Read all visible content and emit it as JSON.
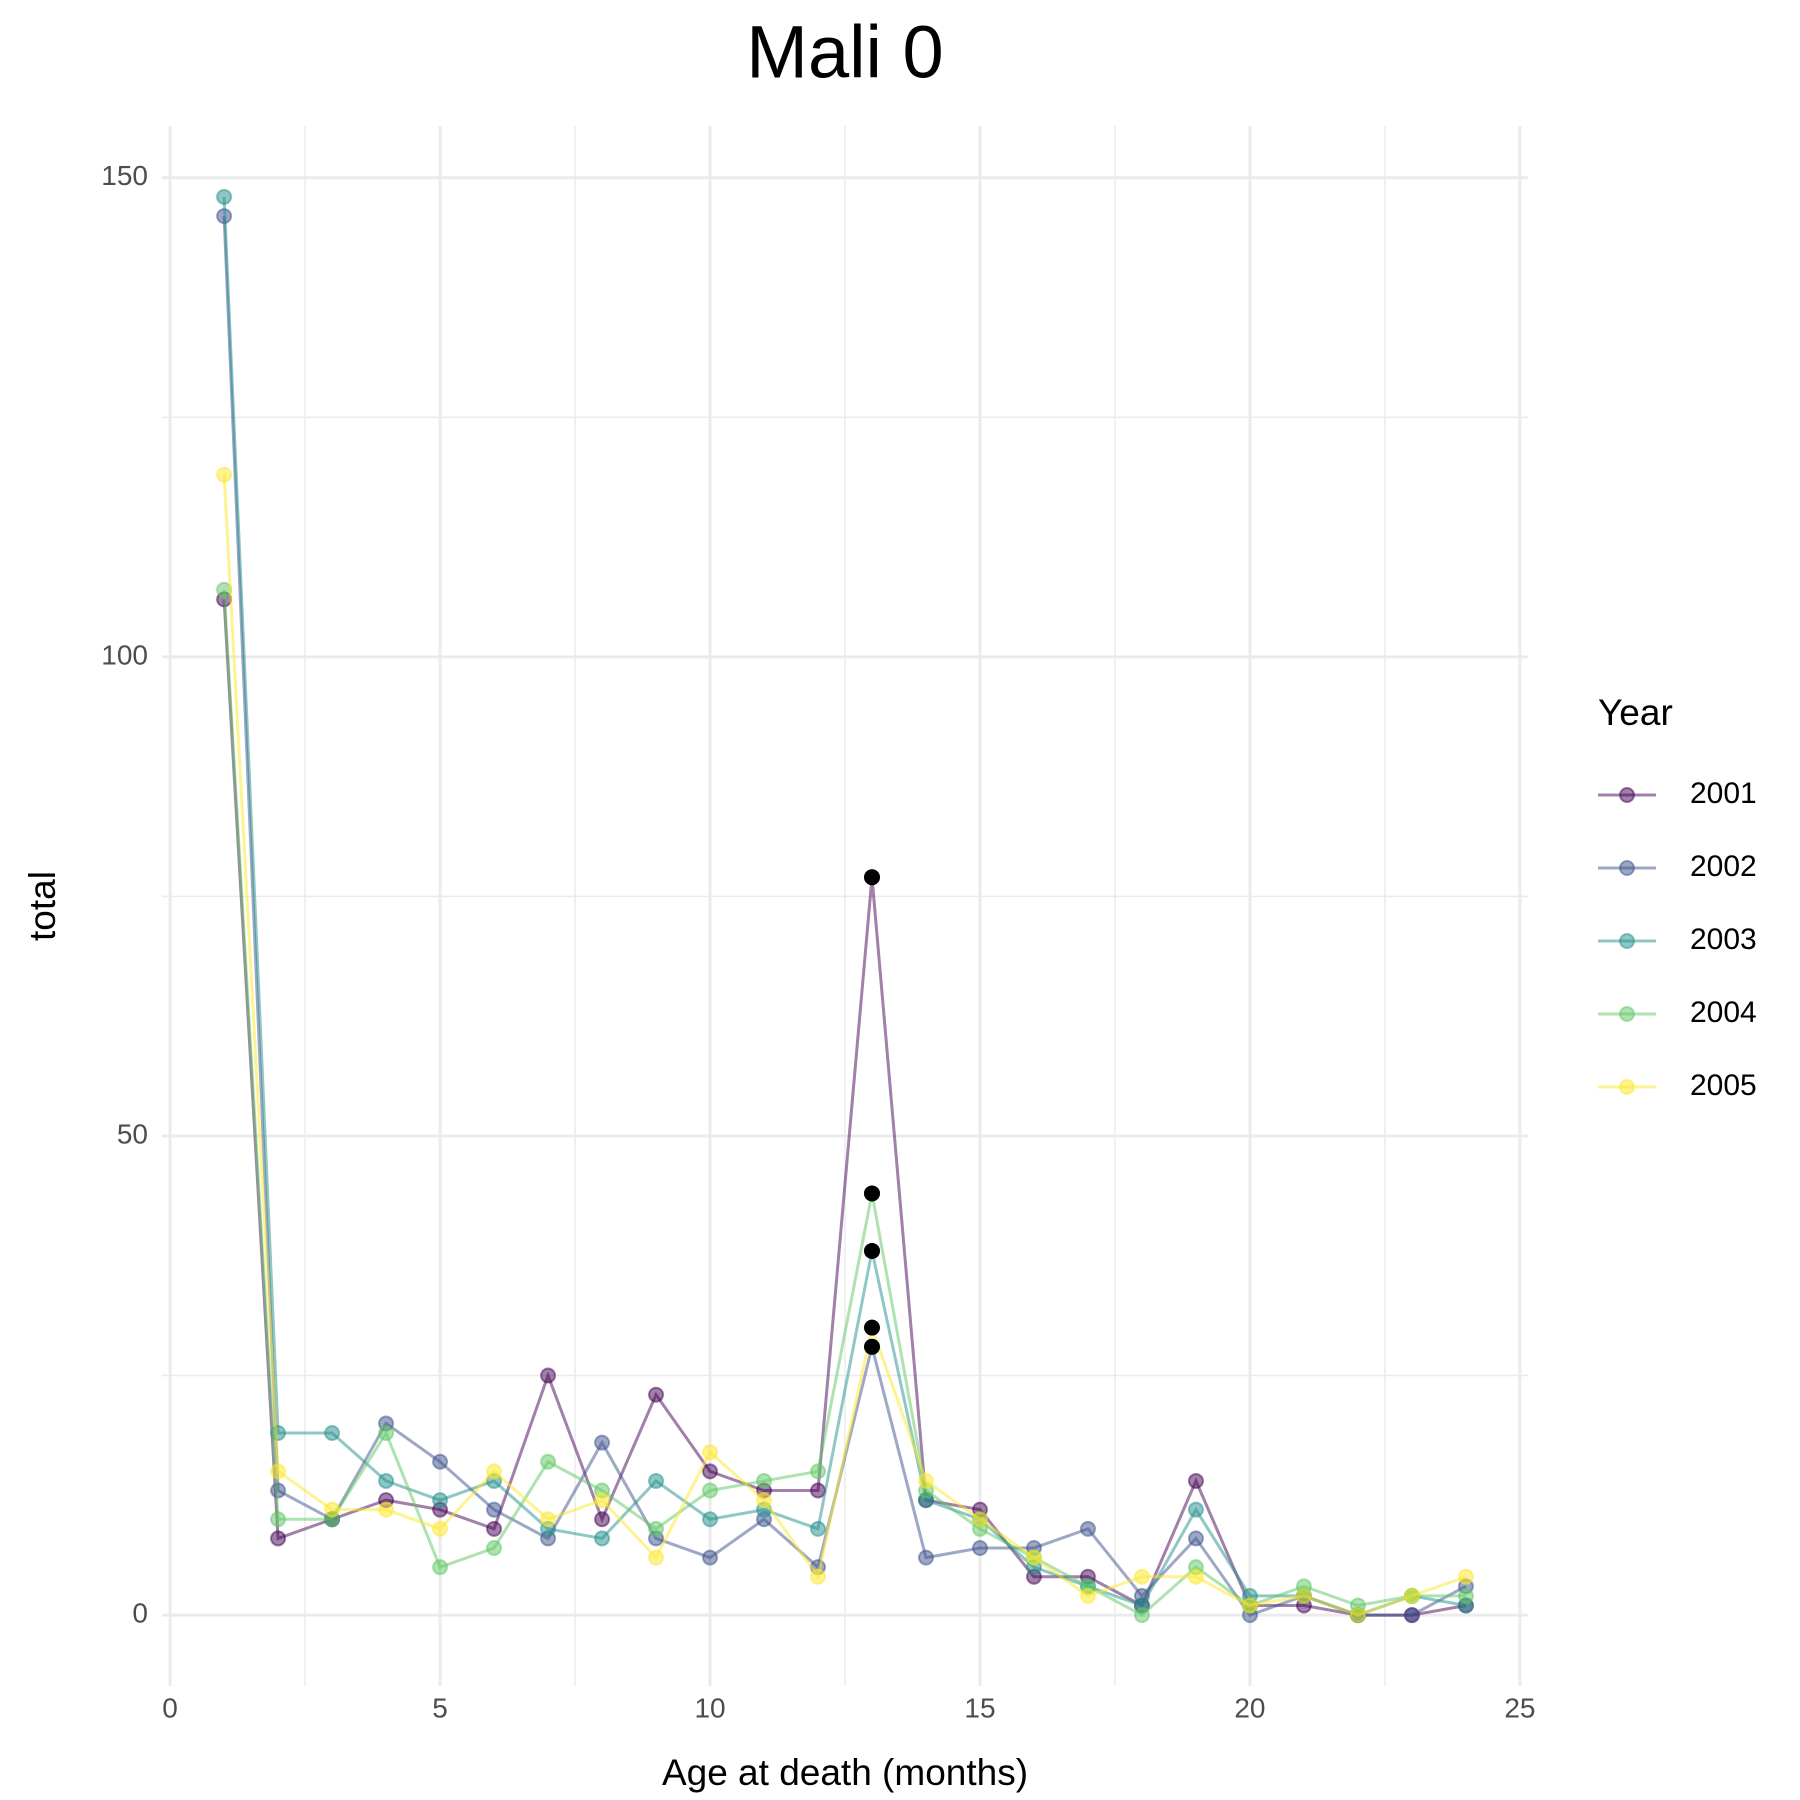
{
  "chart_data": {
    "type": "line",
    "title": "Mali 0",
    "x_label": "Age at death (months)",
    "y_label": "total",
    "legend_title": "Year",
    "x": [
      1,
      2,
      3,
      4,
      5,
      6,
      7,
      8,
      9,
      10,
      11,
      12,
      13,
      14,
      15,
      16,
      17,
      18,
      19,
      20,
      21,
      22,
      23,
      24
    ],
    "series": [
      {
        "name": "2001",
        "color": "#440154",
        "values": [
          106,
          8,
          10,
          12,
          11,
          9,
          25,
          10,
          23,
          15,
          13,
          13,
          77,
          12,
          11,
          4,
          4,
          1,
          14,
          1,
          1,
          0,
          0,
          1
        ]
      },
      {
        "name": "2002",
        "color": "#3B528B",
        "values": [
          146,
          13,
          10,
          20,
          16,
          11,
          8,
          18,
          8,
          6,
          10,
          5,
          28,
          6,
          7,
          7,
          9,
          2,
          8,
          0,
          2,
          0,
          0,
          3
        ]
      },
      {
        "name": "2003",
        "color": "#21908C",
        "values": [
          148,
          19,
          19,
          14,
          12,
          14,
          9,
          8,
          14,
          10,
          11,
          9,
          38,
          12,
          10,
          5,
          3,
          1,
          11,
          2,
          2,
          0,
          2,
          1
        ]
      },
      {
        "name": "2004",
        "color": "#5DC863",
        "values": [
          107,
          10,
          10,
          19,
          5,
          7,
          16,
          13,
          9,
          13,
          14,
          15,
          44,
          13,
          9,
          6,
          3,
          0,
          5,
          1,
          3,
          1,
          2,
          2
        ]
      },
      {
        "name": "2005",
        "color": "#FDE725",
        "values": [
          119,
          15,
          11,
          11,
          9,
          15,
          10,
          12,
          6,
          17,
          12,
          4,
          30,
          14,
          10,
          6,
          2,
          4,
          4,
          1,
          2,
          0,
          2,
          4
        ]
      }
    ],
    "highlight_x": 13,
    "highlight_color": "#000000",
    "xlim": [
      -0.15,
      25.15
    ],
    "xticks": [
      0,
      5,
      10,
      15,
      20,
      25
    ],
    "ylim": [
      -7.4,
      155.4
    ],
    "yticks": [
      0,
      50,
      100,
      150
    ],
    "grid": true
  }
}
